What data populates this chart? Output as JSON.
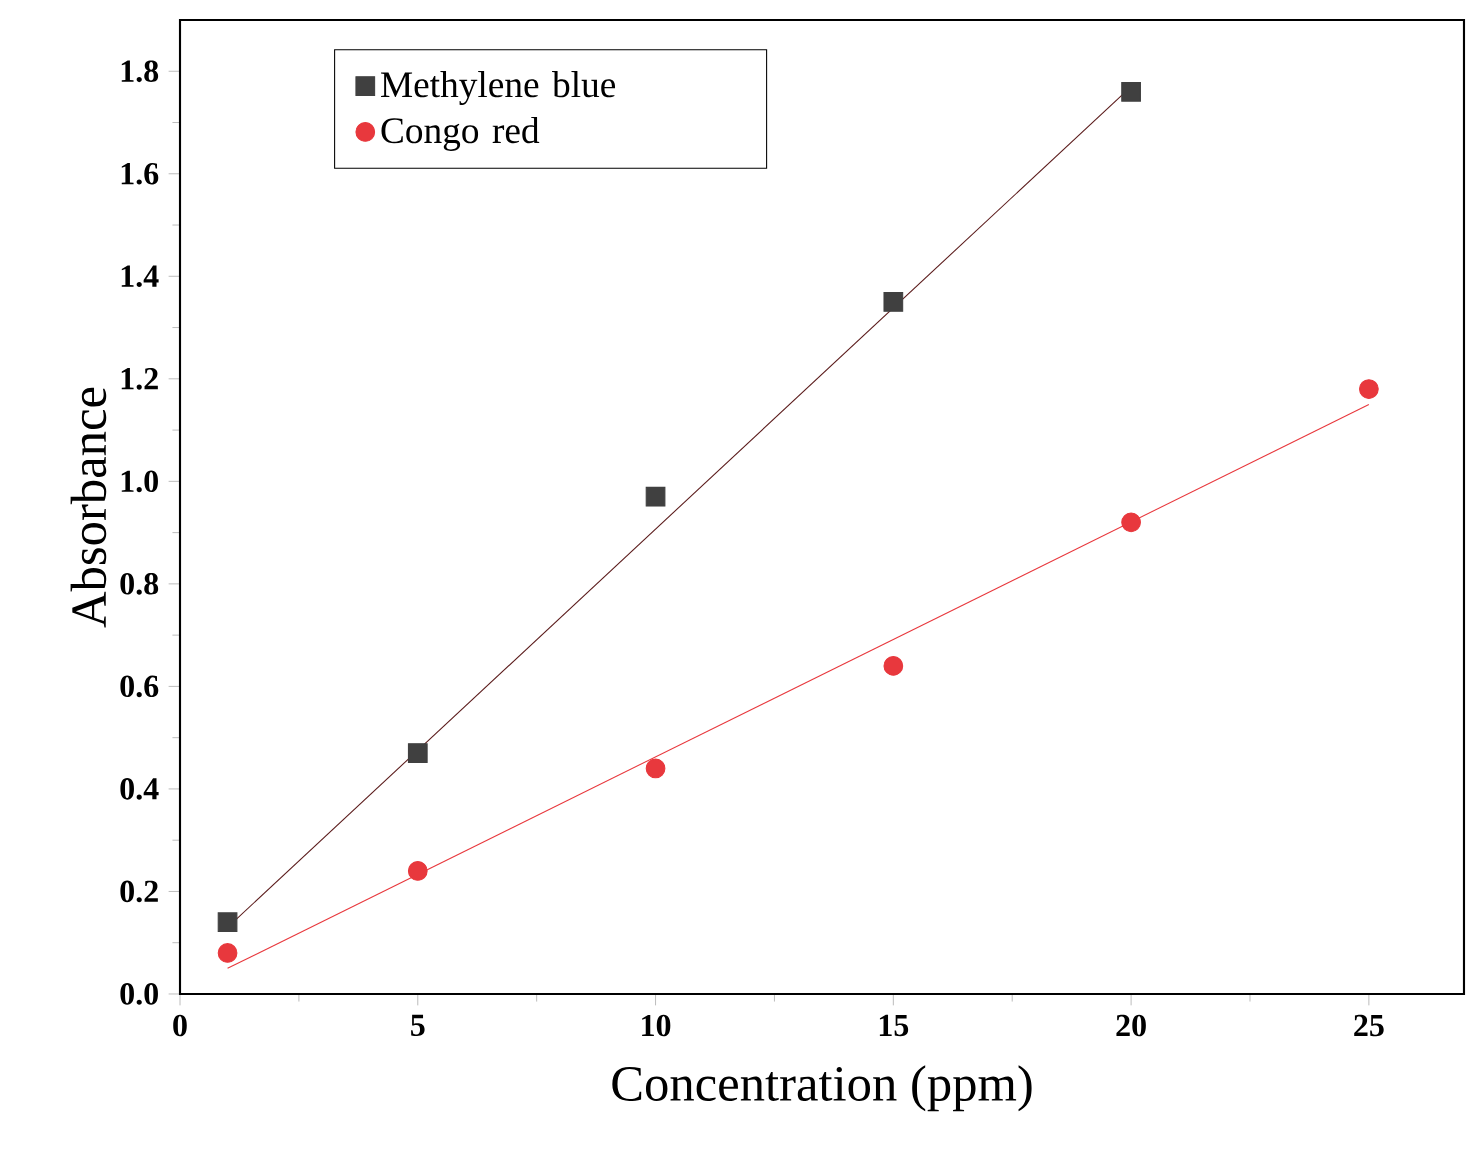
{
  "chart_data": {
    "type": "scatter",
    "xlabel": "Concentration (ppm)",
    "ylabel": "Absorbance",
    "xlim": [
      0,
      27
    ],
    "ylim": [
      0,
      1.9
    ],
    "xticks": [
      0,
      5,
      10,
      15,
      20,
      25
    ],
    "yticks": [
      {
        "value": 0,
        "label": "0.0"
      },
      0.2,
      0.4,
      0.6,
      0.8,
      {
        "value": 1,
        "label": "1.0"
      },
      1.2,
      1.4,
      1.6,
      1.8
    ],
    "legend": "top left",
    "series": [
      {
        "name": "Methylene blue",
        "marker": "square",
        "color": "#404040",
        "x": [
          1,
          5,
          10,
          15,
          20
        ],
        "values": [
          0.14,
          0.47,
          0.97,
          1.35,
          1.76
        ]
      },
      {
        "name": "Congo red",
        "marker": "circle",
        "color": "#e8383d",
        "x": [
          1,
          5,
          10,
          15,
          20,
          25
        ],
        "values": [
          0.08,
          0.24,
          0.44,
          0.64,
          0.92,
          1.18
        ]
      },
      {
        "type": "line",
        "marker": "none",
        "color": "#5a1a1a",
        "x": [
          1,
          20
        ],
        "values": [
          0.13,
          1.77
        ]
      },
      {
        "type": "line",
        "marker": "none",
        "color": "#e8383d",
        "x": [
          1,
          25
        ],
        "values": [
          0.05,
          1.15
        ]
      }
    ]
  }
}
